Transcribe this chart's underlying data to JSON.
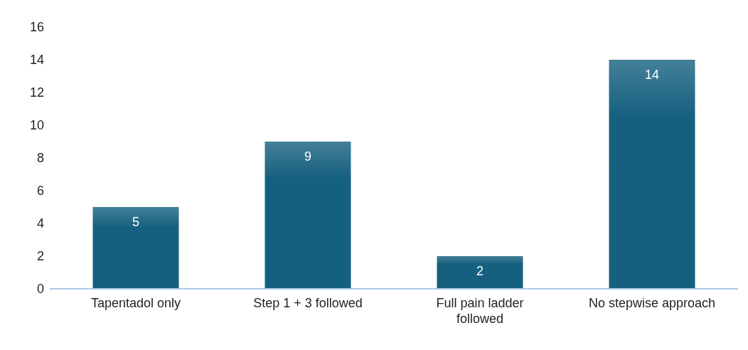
{
  "chart_data": {
    "type": "bar",
    "categories": [
      "Tapentadol only",
      "Step 1 + 3 followed",
      "Full pain ladder followed",
      "No stepwise approach"
    ],
    "values": [
      5,
      9,
      2,
      14
    ],
    "color": "#15607f",
    "ylim": [
      0,
      16
    ],
    "yticks": [
      0,
      2,
      4,
      6,
      8,
      10,
      12,
      14,
      16
    ],
    "data_labels": true
  }
}
